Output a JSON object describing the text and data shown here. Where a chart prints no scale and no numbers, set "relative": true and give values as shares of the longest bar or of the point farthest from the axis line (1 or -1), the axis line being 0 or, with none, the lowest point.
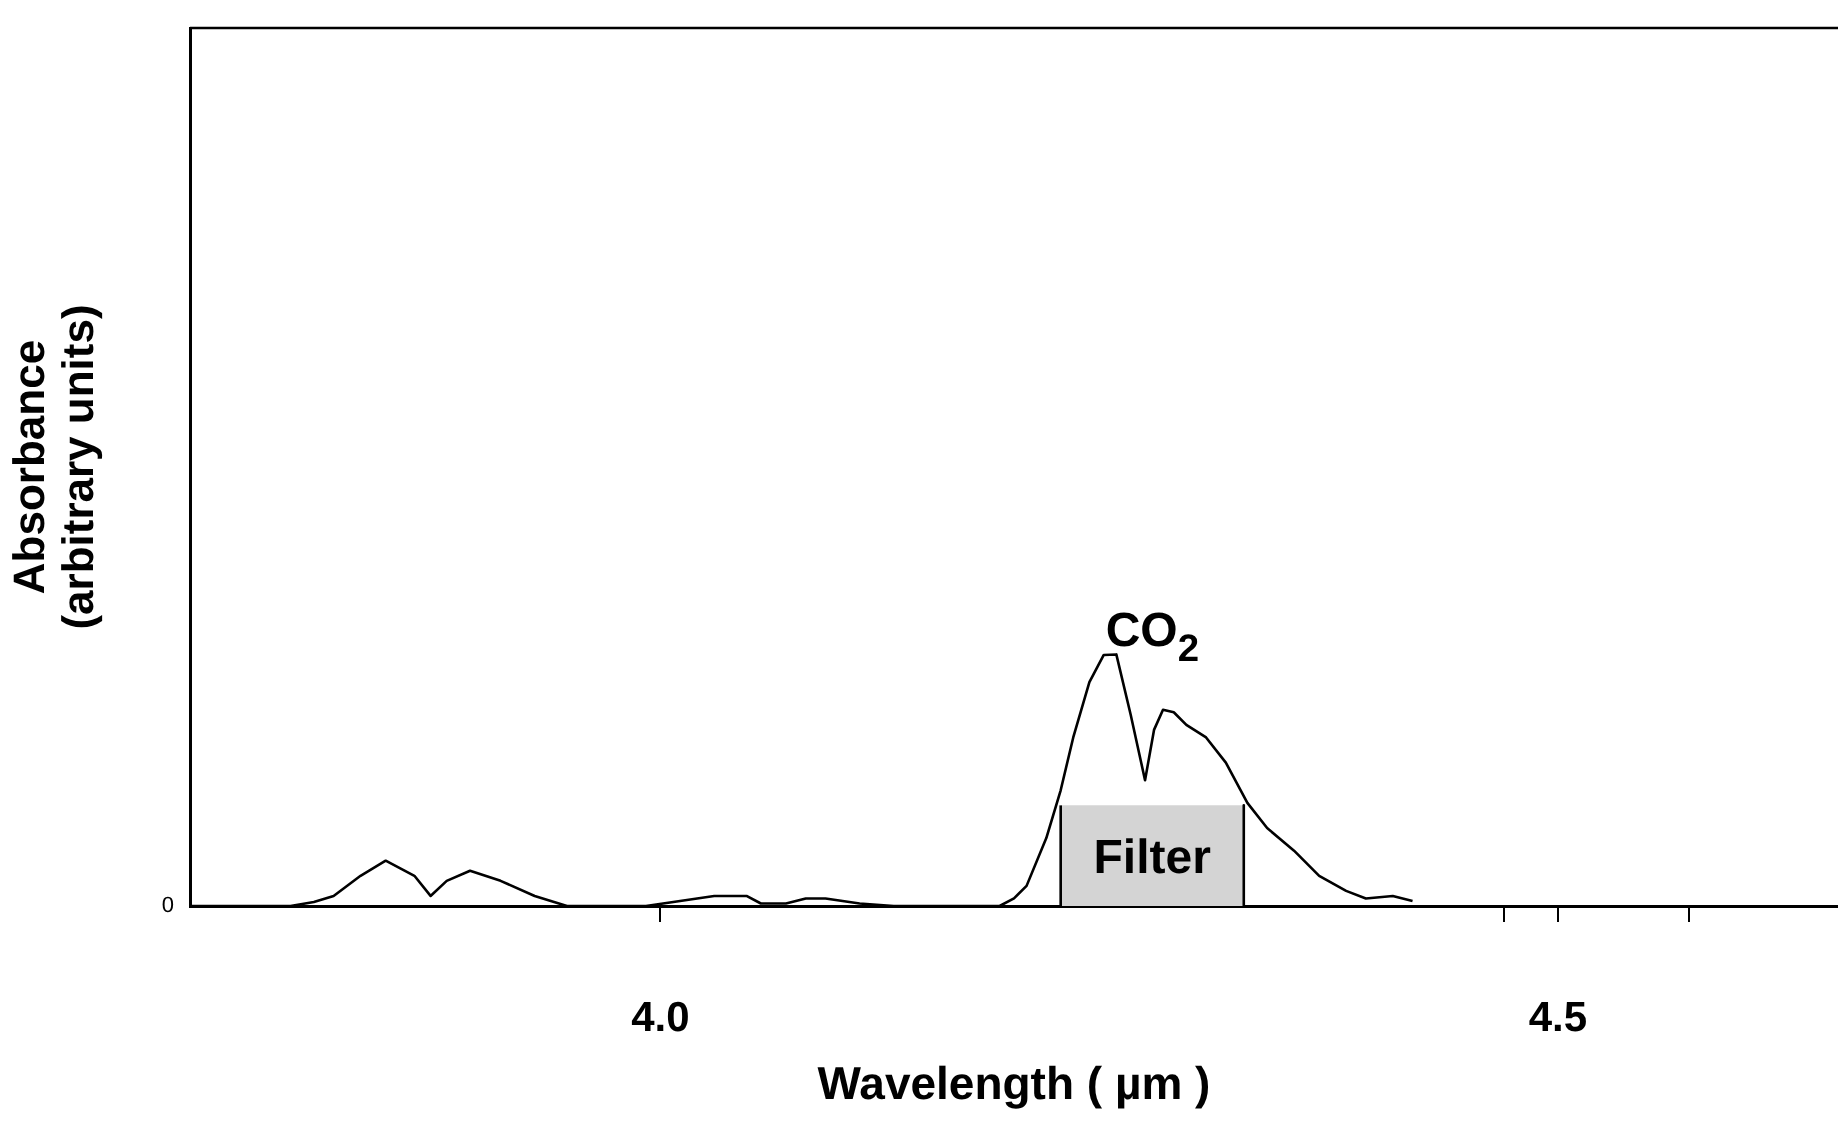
{
  "chart_data": {
    "type": "line",
    "xlabel": "Wavelength ( µm )",
    "ylabel": "Absorbance\n(arbitrary units)",
    "relative": true,
    "xlim": [
      3.738,
      4.656
    ],
    "xticks": [
      {
        "value": 4.0,
        "label": "4.0"
      },
      {
        "value": 4.47,
        "label": null
      },
      {
        "value": 4.5,
        "label": "4.5"
      },
      {
        "value": 4.573,
        "label": null
      }
    ],
    "grid": false,
    "legend": false,
    "marker": "none",
    "annotations": [
      "CO$_{2}$",
      "0"
    ],
    "series": [
      {
        "type": "area",
        "name": "Filter",
        "color": "#d4d4d4",
        "x": [
          4.223,
          4.223,
          4.325,
          4.325
        ],
        "values": [
          0,
          0.4,
          0.4,
          0
        ]
      },
      {
        "color": "#000000",
        "x": [
          3.738,
          3.794,
          3.807,
          3.818,
          3.833,
          3.847,
          3.863,
          3.872,
          3.881,
          3.894,
          3.911,
          3.93,
          3.948,
          3.992,
          4.011,
          4.03,
          4.048,
          4.056,
          4.07,
          4.081,
          4.092,
          4.111,
          4.13,
          4.174,
          4.189,
          4.197,
          4.204,
          4.215,
          4.223,
          4.23,
          4.239,
          4.247,
          4.254,
          4.262,
          4.27,
          4.275,
          4.28,
          4.286,
          4.293,
          4.304,
          4.315,
          4.327,
          4.338,
          4.353,
          4.367,
          4.382,
          4.393,
          4.408,
          4.419
        ],
        "values": [
          0,
          0,
          0.016,
          0.04,
          0.12,
          0.18,
          0.12,
          0.04,
          0.1,
          0.14,
          0.1,
          0.04,
          0,
          0,
          0.02,
          0.04,
          0.04,
          0.01,
          0.01,
          0.03,
          0.03,
          0.01,
          0,
          0,
          0,
          0.03,
          0.08,
          0.27,
          0.46,
          0.67,
          0.89,
          0.998,
          1.0,
          0.76,
          0.5,
          0.7,
          0.78,
          0.77,
          0.72,
          0.67,
          0.57,
          0.41,
          0.31,
          0.22,
          0.12,
          0.06,
          0.03,
          0.04,
          0.02
        ]
      }
    ]
  }
}
